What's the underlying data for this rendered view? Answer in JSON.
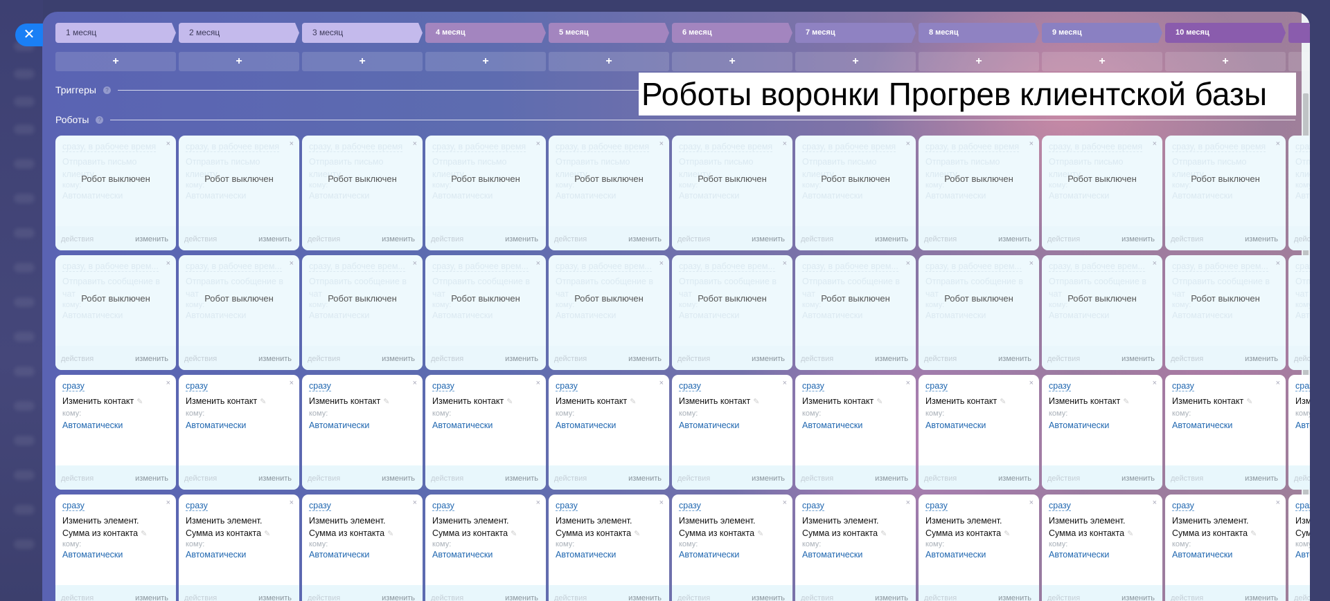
{
  "title_overlay": "Роботы воронки Прогрев клиентской базы",
  "close_icon": "close-icon",
  "stages": [
    {
      "label": "1 месяц",
      "color": "#c4baec"
    },
    {
      "label": "2 месяц",
      "color": "#c4baec"
    },
    {
      "label": "3 месяц",
      "color": "#c4baec"
    },
    {
      "label": "4 месяц",
      "color": "#a385bf"
    },
    {
      "label": "5 месяц",
      "color": "#a385bf"
    },
    {
      "label": "6 месяц",
      "color": "#a385bf"
    },
    {
      "label": "7 месяц",
      "color": "#8f82c2"
    },
    {
      "label": "8 месяц",
      "color": "#8f82c2"
    },
    {
      "label": "9 месяц",
      "color": "#8a80c2"
    },
    {
      "label": "10 месяц",
      "color": "#8a5cad"
    },
    {
      "label": "",
      "color": "#8a5cad"
    }
  ],
  "add_label": "+",
  "sections": {
    "triggers": "Триггеры",
    "robots": "Роботы",
    "help_icon": "?"
  },
  "card_labels": {
    "to": "кому:",
    "footer_actions": "действия",
    "footer_edit": "изменить",
    "disabled": "Робот выключен",
    "close": "×",
    "edit_icon": "✎"
  },
  "robot_rows": [
    {
      "trigger": "сразу, в рабочее время",
      "title": "Отправить письмо клиенту",
      "to": "кому:",
      "recipient": "Автоматически",
      "disabled": true
    },
    {
      "trigger": "сразу, в рабочее врем...",
      "title": "Отправить сообщение в чат",
      "to": "кому:",
      "recipient": "Автоматически",
      "disabled": true
    },
    {
      "trigger": "сразу",
      "title": "Изменить контакт",
      "to": "кому:",
      "recipient": "Автоматически",
      "disabled": false
    },
    {
      "trigger": "сразу",
      "title": "Изменить элемент. Сумма из контакта",
      "to": "кому:",
      "recipient": "Автоматически",
      "disabled": false
    }
  ],
  "colors": {
    "accent": "#1a7ff5",
    "link": "#2067b0"
  }
}
